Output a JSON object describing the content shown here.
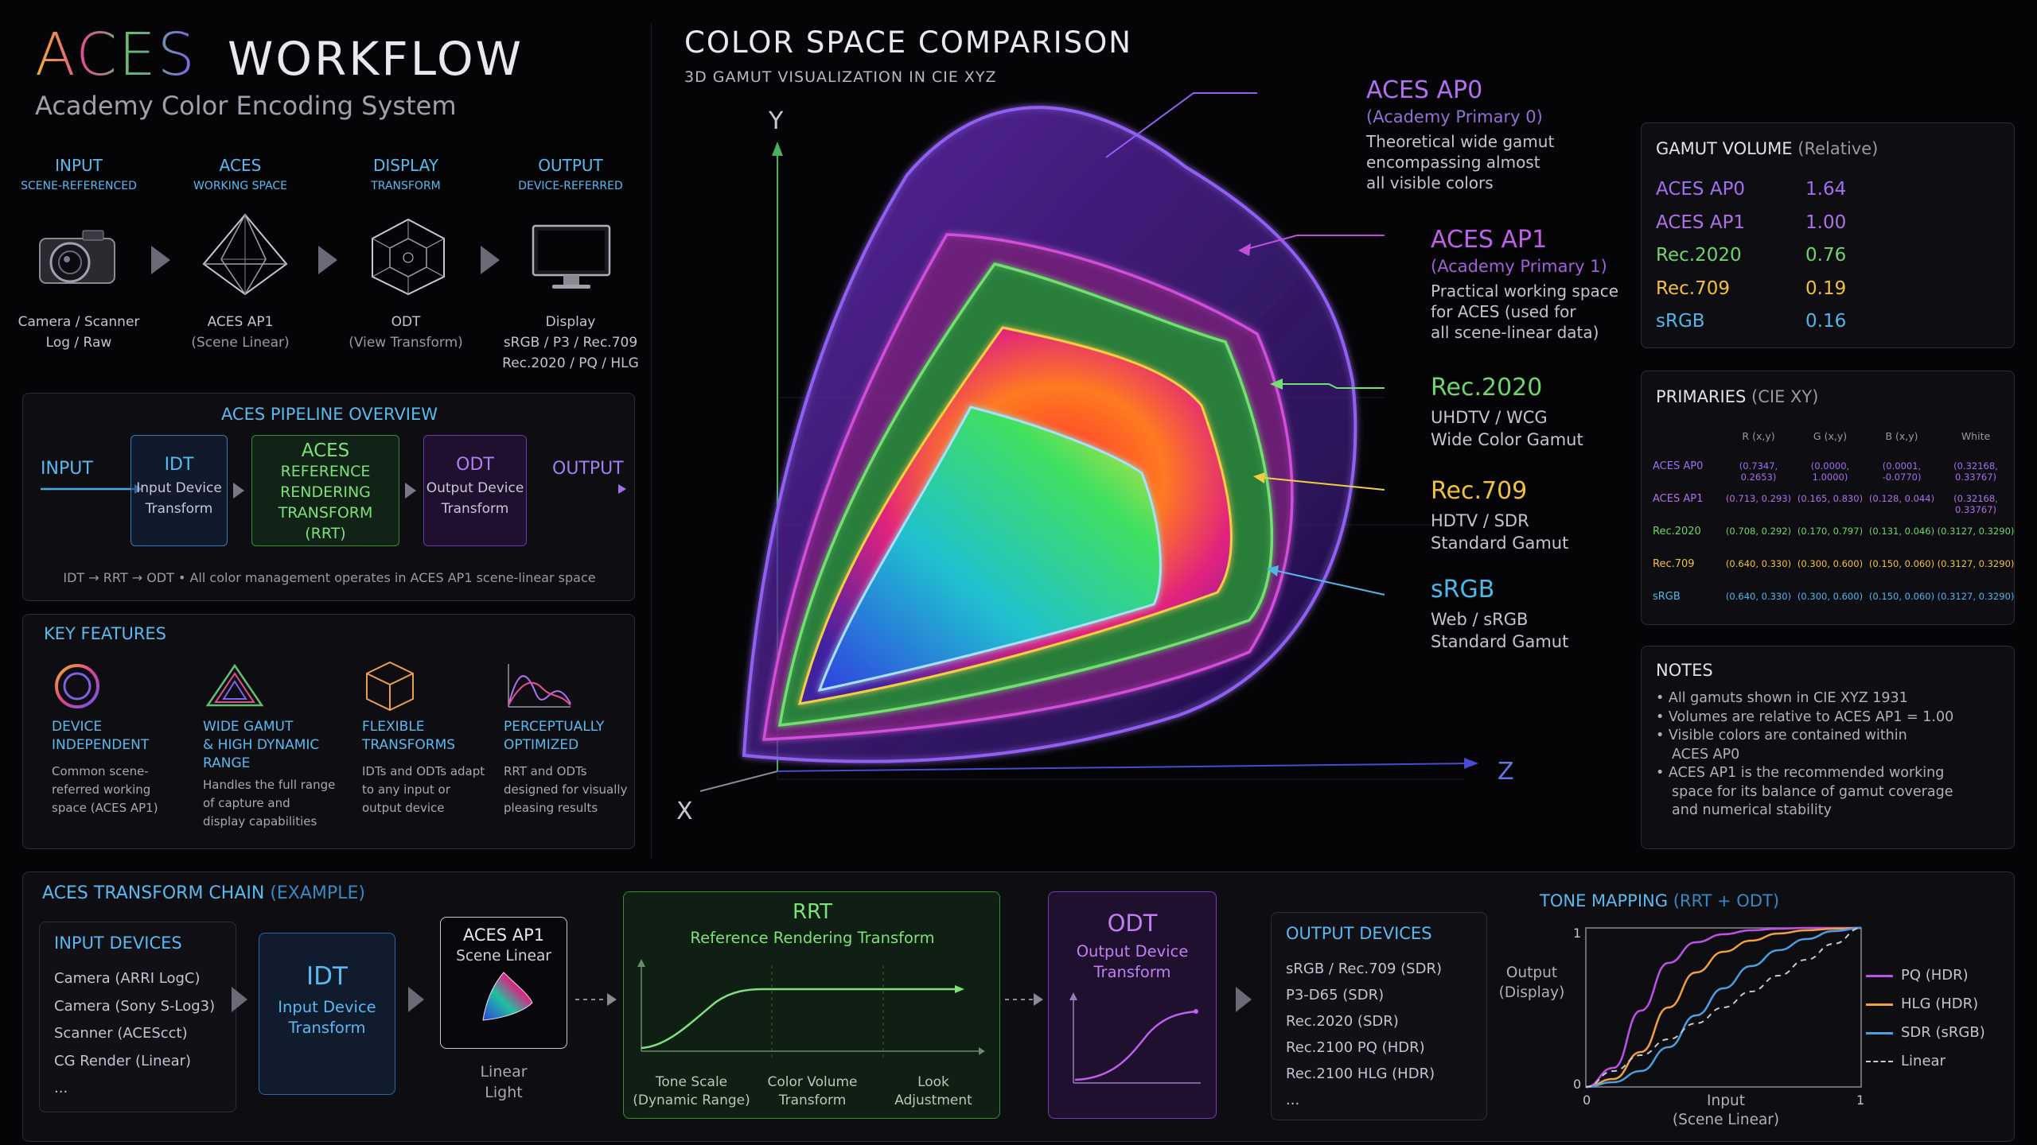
{
  "header": {
    "title_aces": "ACES",
    "title_workflow": "WORKFLOW",
    "subtitle": "Academy Color Encoding System"
  },
  "stages": [
    {
      "t1": "INPUT",
      "t2": "SCENE-REFERENCED",
      "cap1": "Camera / Scanner",
      "cap2": "Log / Raw",
      "cap3": ""
    },
    {
      "t1": "ACES",
      "t2": "WORKING SPACE",
      "cap1": "ACES AP1",
      "cap2": "(Scene Linear)",
      "cap3": ""
    },
    {
      "t1": "DISPLAY",
      "t2": "TRANSFORM",
      "cap1": "ODT",
      "cap2": "(View Transform)",
      "cap3": ""
    },
    {
      "t1": "OUTPUT",
      "t2": "DEVICE-REFERRED",
      "cap1": "Display",
      "cap2": "sRGB / P3 / Rec.709",
      "cap3": "Rec.2020 / PQ / HLG"
    }
  ],
  "pipeline": {
    "title": "ACES PIPELINE OVERVIEW",
    "input_label": "INPUT",
    "output_label": "OUTPUT",
    "idt": {
      "h": "IDT",
      "s1": "Input Device",
      "s2": "Transform"
    },
    "rrt": {
      "l1": "ACES",
      "l2": "REFERENCE",
      "l3": "RENDERING",
      "l4": "TRANSFORM",
      "l5": "(RRT)"
    },
    "odt": {
      "h": "ODT",
      "s1": "Output Device",
      "s2": "Transform"
    },
    "footer": "IDT  →  RRT  →  ODT  •  All color management operates in ACES AP1 scene-linear space"
  },
  "features": {
    "title": "KEY FEATURES",
    "items": [
      {
        "t1": "DEVICE",
        "t2": "INDEPENDENT",
        "t3": "",
        "d1": "Common scene-",
        "d2": "referred working",
        "d3": "space (ACES AP1)",
        "d4": ""
      },
      {
        "t1": "WIDE GAMUT",
        "t2": "& HIGH DYNAMIC",
        "t3": "RANGE",
        "d1": "Handles the full range",
        "d2": "of capture and",
        "d3": "display capabilities",
        "d4": ""
      },
      {
        "t1": "FLEXIBLE",
        "t2": "TRANSFORMS",
        "t3": "",
        "d1": "IDTs and ODTs adapt",
        "d2": "to any input or",
        "d3": "output device",
        "d4": ""
      },
      {
        "t1": "PERCEPTUALLY",
        "t2": "OPTIMIZED",
        "t3": "",
        "d1": "RRT and ODTs",
        "d2": "designed for visually",
        "d3": "pleasing results",
        "d4": ""
      }
    ]
  },
  "comparison": {
    "title": "COLOR SPACE COMPARISON",
    "subtitle": "3D GAMUT VISUALIZATION IN CIE XYZ",
    "axis_y": "Y",
    "axis_x": "X",
    "axis_z": "Z",
    "labels": [
      {
        "name": "ACES AP0",
        "sub": "(Academy Primary 0)",
        "d1": "Theoretical wide gamut",
        "d2": "encompassing almost",
        "d3": "all visible colors",
        "color": "#b070f0"
      },
      {
        "name": "ACES AP1",
        "sub": "(Academy Primary 1)",
        "d1": "Practical working space",
        "d2": "for ACES (used for",
        "d3": "all scene-linear data)",
        "color": "#c060e8"
      },
      {
        "name": "Rec.2020",
        "sub": "",
        "d1": "UHDTV / WCG",
        "d2": "Wide Color Gamut",
        "d3": "",
        "color": "#6ed66a"
      },
      {
        "name": "Rec.709",
        "sub": "",
        "d1": "HDTV / SDR",
        "d2": "Standard Gamut",
        "d3": "",
        "color": "#f0c040"
      },
      {
        "name": "sRGB",
        "sub": "",
        "d1": "Web / sRGB",
        "d2": "Standard Gamut",
        "d3": "",
        "color": "#4fb8e8"
      }
    ]
  },
  "gamut_volume": {
    "title": "GAMUT VOLUME",
    "title_suffix": "(Relative)",
    "rows": [
      {
        "name": "ACES AP0",
        "value": "1.64",
        "color": "#a070f0"
      },
      {
        "name": "ACES AP1",
        "value": "1.00",
        "color": "#b070e8"
      },
      {
        "name": "Rec.2020",
        "value": "0.76",
        "color": "#6ed66a"
      },
      {
        "name": "Rec.709",
        "value": "0.19",
        "color": "#f0c040"
      },
      {
        "name": "sRGB",
        "value": "0.16",
        "color": "#4fb8e8"
      }
    ]
  },
  "primaries": {
    "title": "PRIMARIES",
    "title_suffix": "(CIE XY)",
    "headers": [
      "R (x,y)",
      "G (x,y)",
      "B (x,y)",
      "White"
    ],
    "rows": [
      {
        "name": "ACES AP0",
        "r": "(0.7347, 0.2653)",
        "g": "(0.0000, 1.0000)",
        "b": "(0.0001, -0.0770)",
        "w": "(0.32168, 0.33767)",
        "color": "#a070f0"
      },
      {
        "name": "ACES AP1",
        "r": "(0.713, 0.293)",
        "g": "(0.165, 0.830)",
        "b": "(0.128, 0.044)",
        "w": "(0.32168, 0.33767)",
        "color": "#b070e8"
      },
      {
        "name": "Rec.2020",
        "r": "(0.708, 0.292)",
        "g": "(0.170, 0.797)",
        "b": "(0.131, 0.046)",
        "w": "(0.3127, 0.3290)",
        "color": "#6ed66a"
      },
      {
        "name": "Rec.709",
        "r": "(0.640, 0.330)",
        "g": "(0.300, 0.600)",
        "b": "(0.150, 0.060)",
        "w": "(0.3127, 0.3290)",
        "color": "#f0c040"
      },
      {
        "name": "sRGB",
        "r": "(0.640, 0.330)",
        "g": "(0.300, 0.600)",
        "b": "(0.150, 0.060)",
        "w": "(0.3127, 0.3290)",
        "color": "#4fb8e8"
      }
    ]
  },
  "notes": {
    "title": "NOTES",
    "items": [
      "All gamuts shown in CIE XYZ 1931",
      "Volumes are relative to ACES AP1 = 1.00",
      "Visible colors are contained within",
      "ACES AP0",
      "ACES AP1 is the recommended working",
      "space for its balance of gamut coverage",
      "and numerical stability"
    ]
  },
  "chain": {
    "title": "ACES TRANSFORM CHAIN",
    "title_suffix": "(EXAMPLE)",
    "input_devices": {
      "title": "INPUT DEVICES",
      "items": [
        "Camera (ARRI LogC)",
        "Camera (Sony S-Log3)",
        "Scanner (ACEScct)",
        "CG Render (Linear)",
        "..."
      ]
    },
    "idt": {
      "h": "IDT",
      "s1": "Input Device",
      "s2": "Transform"
    },
    "ap1": {
      "h": "ACES AP1",
      "s": "Scene Linear",
      "c1": "Linear",
      "c2": "Light"
    },
    "rrt": {
      "h": "RRT",
      "s": "Reference Rendering Transform",
      "a1": "Tone Scale",
      "a2": "(Dynamic Range)",
      "b1": "Color Volume",
      "b2": "Transform",
      "c1": "Look",
      "c2": "Adjustment"
    },
    "odt": {
      "h": "ODT",
      "s1": "Output Device",
      "s2": "Transform"
    },
    "output_devices": {
      "title": "OUTPUT DEVICES",
      "items": [
        "sRGB / Rec.709 (SDR)",
        "P3-D65 (SDR)",
        "Rec.2020 (SDR)",
        "Rec.2100 PQ (HDR)",
        "Rec.2100 HLG (HDR)",
        "..."
      ]
    }
  },
  "chart_data": {
    "type": "line",
    "title": "TONE MAPPING",
    "title_suffix": "(RRT + ODT)",
    "xlabel": "Input",
    "xlabel2": "(Scene Linear)",
    "ylabel": "Output",
    "ylabel2": "(Display)",
    "xlim": [
      0,
      1
    ],
    "ylim": [
      0,
      1
    ],
    "x_ticks": [
      "0",
      "1"
    ],
    "y_ticks": [
      "0",
      "1"
    ],
    "x": [
      0,
      0.1,
      0.2,
      0.3,
      0.4,
      0.5,
      0.6,
      0.7,
      0.8,
      0.9,
      1.0
    ],
    "series": [
      {
        "name": "PQ (HDR)",
        "color": "#c050e8",
        "dash": false,
        "values": [
          0.0,
          0.12,
          0.48,
          0.78,
          0.91,
          0.96,
          0.985,
          0.995,
          1.0,
          1.0,
          1.0
        ]
      },
      {
        "name": "HLG (HDR)",
        "color": "#f0a040",
        "dash": false,
        "values": [
          0.0,
          0.05,
          0.22,
          0.5,
          0.72,
          0.85,
          0.92,
          0.965,
          0.985,
          0.995,
          1.0
        ]
      },
      {
        "name": "SDR (sRGB)",
        "color": "#4aa0e0",
        "dash": false,
        "values": [
          0.0,
          0.03,
          0.1,
          0.25,
          0.45,
          0.62,
          0.76,
          0.86,
          0.93,
          0.98,
          1.0
        ]
      },
      {
        "name": "Linear",
        "color": "#c8c8d0",
        "dash": true,
        "values": [
          0.0,
          0.1,
          0.2,
          0.3,
          0.4,
          0.5,
          0.6,
          0.7,
          0.8,
          0.9,
          1.0
        ]
      }
    ]
  }
}
